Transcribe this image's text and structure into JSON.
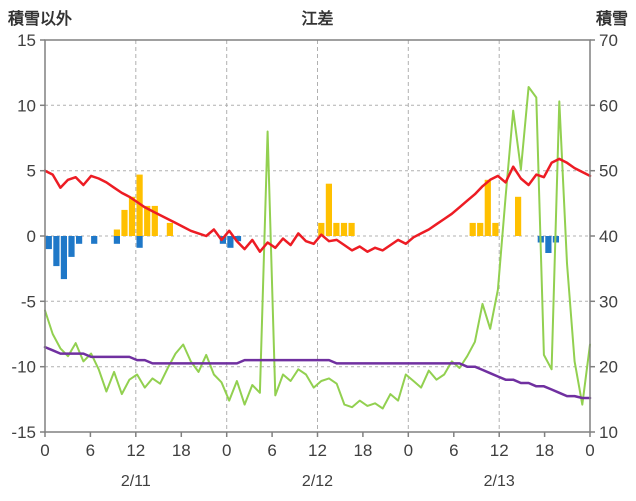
{
  "chart_data": {
    "type": "line",
    "title": "江差",
    "axis_color": "#808080",
    "grid_color": "#b0b0b0",
    "text_color": "#404040",
    "left_axis": {
      "label": "積雪以外",
      "min": -15,
      "max": 15,
      "ticks": [
        15,
        10,
        5,
        0,
        -5,
        -10,
        -15
      ]
    },
    "right_axis": {
      "label": "積雪",
      "min": 10,
      "max": 70,
      "ticks": [
        70,
        60,
        50,
        40,
        30,
        20,
        10
      ]
    },
    "x_axis": {
      "hours_total": 72,
      "tick_step": 6,
      "tick_labels": [
        "0",
        "6",
        "12",
        "18",
        "0",
        "6",
        "12",
        "18",
        "0",
        "6",
        "12",
        "18",
        "0"
      ],
      "gridline_hours": [
        12,
        24,
        36,
        48,
        60
      ],
      "day_labels": [
        "2/11",
        "2/12",
        "2/13"
      ]
    },
    "series": [
      {
        "name": "orange-bars",
        "type": "bar",
        "axis": "left",
        "color": "#ffc000",
        "points": [
          [
            9,
            0.5
          ],
          [
            10,
            2.0
          ],
          [
            11,
            3.0
          ],
          [
            12,
            4.7
          ],
          [
            13,
            2.3
          ],
          [
            14,
            2.3
          ],
          [
            16,
            1.0
          ],
          [
            36,
            1.0
          ],
          [
            37,
            4.0
          ],
          [
            38,
            1.0
          ],
          [
            39,
            1.0
          ],
          [
            40,
            1.0
          ],
          [
            56,
            1.0
          ],
          [
            57,
            1.0
          ],
          [
            58,
            4.3
          ],
          [
            59,
            1.0
          ],
          [
            62,
            3.0
          ]
        ]
      },
      {
        "name": "blue-bars",
        "type": "bar",
        "axis": "left",
        "color": "#1f78c8",
        "points": [
          [
            0,
            -1.0
          ],
          [
            1,
            -2.3
          ],
          [
            2,
            -3.3
          ],
          [
            3,
            -1.6
          ],
          [
            4,
            -0.6
          ],
          [
            6,
            -0.6
          ],
          [
            9,
            -0.6
          ],
          [
            12,
            -0.9
          ],
          [
            23,
            -0.6
          ],
          [
            24,
            -0.9
          ],
          [
            25,
            -0.4
          ],
          [
            65,
            -0.5
          ],
          [
            66,
            -1.3
          ],
          [
            67,
            -0.5
          ]
        ]
      },
      {
        "name": "green-line",
        "type": "line",
        "axis": "left",
        "color": "#92d050",
        "width": 2,
        "values": [
          -5.7,
          -7.5,
          -8.6,
          -9.2,
          -8.2,
          -9.6,
          -9.0,
          -10.2,
          -11.9,
          -10.4,
          -12.1,
          -11.0,
          -10.6,
          -11.6,
          -10.9,
          -11.3,
          -10.1,
          -9.0,
          -8.3,
          -9.6,
          -10.4,
          -9.1,
          -10.6,
          -11.2,
          -12.6,
          -11.1,
          -12.9,
          -11.4,
          -12.0,
          8.0,
          -12.2,
          -10.6,
          -11.1,
          -10.2,
          -10.6,
          -11.6,
          -11.1,
          -10.9,
          -11.3,
          -12.9,
          -13.1,
          -12.6,
          -13.0,
          -12.8,
          -13.2,
          -12.1,
          -12.6,
          -10.6,
          -11.1,
          -11.6,
          -10.3,
          -11.0,
          -10.6,
          -9.6,
          -10.1,
          -9.2,
          -8.1,
          -5.2,
          -7.1,
          -4.1,
          3.0,
          9.6,
          5.1,
          11.4,
          10.6,
          -9.1,
          -10.2,
          10.3,
          -2.1,
          -9.6,
          -12.9,
          -8.3
        ]
      },
      {
        "name": "purple-line",
        "type": "line",
        "axis": "right",
        "color": "#7030a0",
        "width": 2.5,
        "values": [
          23,
          22.5,
          22,
          22,
          22,
          22,
          21.5,
          21.5,
          21.5,
          21.5,
          21.5,
          21.5,
          21,
          21,
          20.5,
          20.5,
          20.5,
          20.5,
          20.5,
          20.5,
          20.5,
          20.5,
          20.5,
          20.5,
          20.5,
          20.5,
          21,
          21,
          21,
          21,
          21,
          21,
          21,
          21,
          21,
          21,
          21,
          21,
          20.5,
          20.5,
          20.5,
          20.5,
          20.5,
          20.5,
          20.5,
          20.5,
          20.5,
          20.5,
          20.5,
          20.5,
          20.5,
          20.5,
          20.5,
          20.5,
          20.5,
          20,
          20,
          19.5,
          19,
          18.5,
          18,
          18,
          17.5,
          17.5,
          17,
          17,
          16.5,
          16,
          15.5,
          15.5,
          15.2,
          15.2
        ]
      },
      {
        "name": "red-line",
        "type": "line",
        "axis": "left",
        "color": "#ed1c24",
        "width": 2.5,
        "values": [
          5.0,
          4.7,
          3.7,
          4.3,
          4.5,
          3.9,
          4.6,
          4.4,
          4.1,
          3.7,
          3.3,
          3.0,
          2.6,
          2.2,
          1.9,
          1.6,
          1.3,
          1.0,
          0.7,
          0.4,
          0.2,
          0.0,
          0.5,
          -0.3,
          0.4,
          -0.4,
          -1.0,
          -0.3,
          -1.2,
          -0.5,
          -0.9,
          -0.2,
          -0.7,
          0.2,
          -0.4,
          -0.6,
          0.1,
          -0.4,
          -0.3,
          -0.7,
          -1.1,
          -0.8,
          -1.2,
          -0.9,
          -1.1,
          -0.7,
          -0.3,
          -0.6,
          -0.1,
          0.2,
          0.5,
          0.9,
          1.3,
          1.7,
          2.2,
          2.7,
          3.2,
          3.8,
          4.3,
          4.6,
          4.1,
          5.3,
          4.4,
          3.9,
          4.7,
          4.5,
          5.6,
          5.9,
          5.6,
          5.2,
          4.9,
          4.6
        ]
      }
    ]
  }
}
